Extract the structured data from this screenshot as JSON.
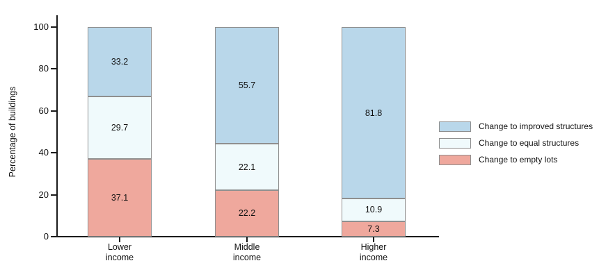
{
  "y_axis": {
    "title": "Percentage of buildings",
    "ticks": [
      0,
      20,
      40,
      60,
      80,
      100
    ]
  },
  "chart_data": {
    "type": "bar",
    "stacked": true,
    "title": "",
    "xlabel": "",
    "ylabel": "Percentage of buildings",
    "ylim": [
      0,
      100
    ],
    "grid": false,
    "legend_position": "right",
    "categories": [
      "Lower income",
      "Middle income",
      "Higher income"
    ],
    "category_lines": [
      [
        "Lower",
        "income"
      ],
      [
        "Middle",
        "income"
      ],
      [
        "Higher",
        "income"
      ]
    ],
    "series": [
      {
        "name": "Change to improved structures",
        "color": "#b9d7ea",
        "values": [
          33.2,
          55.7,
          81.8
        ]
      },
      {
        "name": "Change to equal structures",
        "color": "#f0fafc",
        "values": [
          29.7,
          22.1,
          10.9
        ]
      },
      {
        "name": "Change to empty lots",
        "color": "#efa89d",
        "values": [
          37.1,
          22.2,
          7.3
        ]
      }
    ],
    "colors": {
      "improved": "#b9d7ea",
      "equal": "#f0fafc",
      "empty": "#efa89d",
      "bar_border": "#8f8f8f",
      "axis": "#1a1a1a",
      "text": "#111111"
    }
  }
}
